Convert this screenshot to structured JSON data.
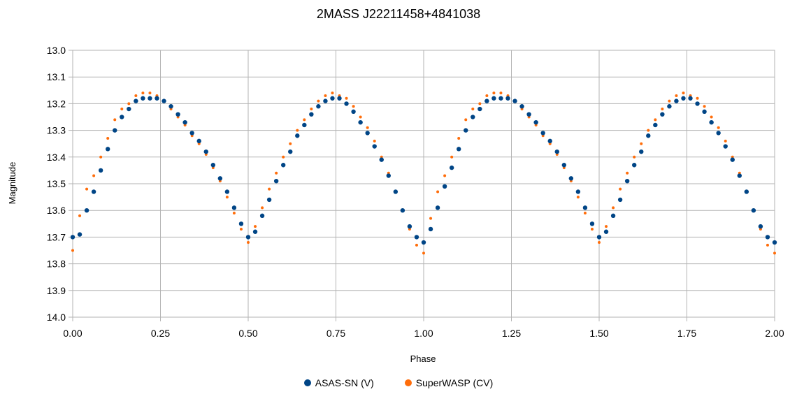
{
  "chart_data": {
    "type": "scatter",
    "title": "2MASS J22211458+4841038",
    "xlabel": "Phase",
    "ylabel": "Magnitude",
    "xlim": [
      0,
      2
    ],
    "ylim": [
      13.0,
      14.0
    ],
    "y_inverted": true,
    "grid": true,
    "legend_position": "bottom",
    "x_ticks": [
      "0.00",
      "0.25",
      "0.50",
      "0.75",
      "1.00",
      "1.25",
      "1.50",
      "1.75",
      "2.00"
    ],
    "y_ticks": [
      "13.0",
      "13.1",
      "13.2",
      "13.3",
      "13.4",
      "13.5",
      "13.6",
      "13.7",
      "13.8",
      "13.9",
      "14.0"
    ],
    "series": [
      {
        "name": "ASAS-SN (V)",
        "color": "#004586",
        "x": [
          0.0,
          0.02,
          0.04,
          0.06,
          0.08,
          0.1,
          0.12,
          0.14,
          0.16,
          0.18,
          0.2,
          0.22,
          0.24,
          0.26,
          0.28,
          0.3,
          0.32,
          0.34,
          0.36,
          0.38,
          0.4,
          0.42,
          0.44,
          0.46,
          0.48,
          0.5,
          0.52,
          0.54,
          0.56,
          0.58,
          0.6,
          0.62,
          0.64,
          0.66,
          0.68,
          0.7,
          0.72,
          0.74,
          0.76,
          0.78,
          0.8,
          0.82,
          0.84,
          0.86,
          0.88,
          0.9,
          0.92,
          0.94,
          0.96,
          0.98,
          1.0,
          1.02,
          1.04,
          1.06,
          1.08,
          1.1,
          1.12,
          1.14,
          1.16,
          1.18,
          1.2,
          1.22,
          1.24,
          1.26,
          1.28,
          1.3,
          1.32,
          1.34,
          1.36,
          1.38,
          1.4,
          1.42,
          1.44,
          1.46,
          1.48,
          1.5,
          1.52,
          1.54,
          1.56,
          1.58,
          1.6,
          1.62,
          1.64,
          1.66,
          1.68,
          1.7,
          1.72,
          1.74,
          1.76,
          1.78,
          1.8,
          1.82,
          1.84,
          1.86,
          1.88,
          1.9,
          1.92,
          1.94,
          1.96,
          1.98,
          2.0
        ],
        "y": [
          13.7,
          13.69,
          13.6,
          13.53,
          13.45,
          13.37,
          13.3,
          13.25,
          13.22,
          13.19,
          13.18,
          13.18,
          13.18,
          13.19,
          13.21,
          13.24,
          13.27,
          13.31,
          13.34,
          13.38,
          13.43,
          13.48,
          13.53,
          13.59,
          13.65,
          13.7,
          13.68,
          13.62,
          13.56,
          13.49,
          13.43,
          13.38,
          13.32,
          13.28,
          13.24,
          13.21,
          13.19,
          13.18,
          13.18,
          13.2,
          13.23,
          13.27,
          13.31,
          13.36,
          13.41,
          13.47,
          13.53,
          13.6,
          13.66,
          13.7,
          13.72,
          13.67,
          13.59,
          13.51,
          13.44,
          13.37,
          13.3,
          13.25,
          13.22,
          13.19,
          13.18,
          13.18,
          13.18,
          13.19,
          13.21,
          13.24,
          13.27,
          13.31,
          13.34,
          13.38,
          13.43,
          13.48,
          13.53,
          13.59,
          13.65,
          13.7,
          13.68,
          13.62,
          13.56,
          13.49,
          13.43,
          13.38,
          13.32,
          13.28,
          13.24,
          13.21,
          13.19,
          13.18,
          13.18,
          13.2,
          13.23,
          13.27,
          13.31,
          13.36,
          13.41,
          13.47,
          13.53,
          13.6,
          13.66,
          13.7,
          13.72
        ]
      },
      {
        "name": "SuperWASP (CV)",
        "color": "#ff6d0a",
        "x": [
          0.0,
          0.02,
          0.04,
          0.06,
          0.08,
          0.1,
          0.12,
          0.14,
          0.16,
          0.18,
          0.2,
          0.22,
          0.24,
          0.26,
          0.28,
          0.3,
          0.32,
          0.34,
          0.36,
          0.38,
          0.4,
          0.42,
          0.44,
          0.46,
          0.48,
          0.5,
          0.52,
          0.54,
          0.56,
          0.58,
          0.6,
          0.62,
          0.64,
          0.66,
          0.68,
          0.7,
          0.72,
          0.74,
          0.76,
          0.78,
          0.8,
          0.82,
          0.84,
          0.86,
          0.88,
          0.9,
          0.92,
          0.94,
          0.96,
          0.98,
          1.0,
          1.02,
          1.04,
          1.06,
          1.08,
          1.1,
          1.12,
          1.14,
          1.16,
          1.18,
          1.2,
          1.22,
          1.24,
          1.26,
          1.28,
          1.3,
          1.32,
          1.34,
          1.36,
          1.38,
          1.4,
          1.42,
          1.44,
          1.46,
          1.48,
          1.5,
          1.52,
          1.54,
          1.56,
          1.58,
          1.6,
          1.62,
          1.64,
          1.66,
          1.68,
          1.7,
          1.72,
          1.74,
          1.76,
          1.78,
          1.8,
          1.82,
          1.84,
          1.86,
          1.88,
          1.9,
          1.92,
          1.94,
          1.96,
          1.98,
          2.0
        ],
        "y": [
          13.75,
          13.62,
          13.52,
          13.47,
          13.4,
          13.33,
          13.26,
          13.22,
          13.2,
          13.17,
          13.16,
          13.16,
          13.17,
          13.19,
          13.22,
          13.25,
          13.28,
          13.32,
          13.35,
          13.39,
          13.44,
          13.49,
          13.55,
          13.61,
          13.67,
          13.72,
          13.66,
          13.59,
          13.52,
          13.46,
          13.4,
          13.35,
          13.3,
          13.26,
          13.22,
          13.19,
          13.17,
          13.16,
          13.17,
          13.18,
          13.21,
          13.25,
          13.29,
          13.34,
          13.4,
          13.46,
          13.53,
          13.6,
          13.67,
          13.73,
          13.76,
          13.63,
          13.53,
          13.47,
          13.4,
          13.33,
          13.26,
          13.22,
          13.2,
          13.17,
          13.16,
          13.16,
          13.17,
          13.19,
          13.22,
          13.25,
          13.28,
          13.32,
          13.35,
          13.39,
          13.44,
          13.49,
          13.55,
          13.61,
          13.67,
          13.72,
          13.66,
          13.59,
          13.52,
          13.46,
          13.4,
          13.35,
          13.3,
          13.26,
          13.22,
          13.19,
          13.17,
          13.16,
          13.17,
          13.18,
          13.21,
          13.25,
          13.29,
          13.34,
          13.4,
          13.46,
          13.53,
          13.6,
          13.67,
          13.73,
          13.76
        ]
      }
    ]
  }
}
